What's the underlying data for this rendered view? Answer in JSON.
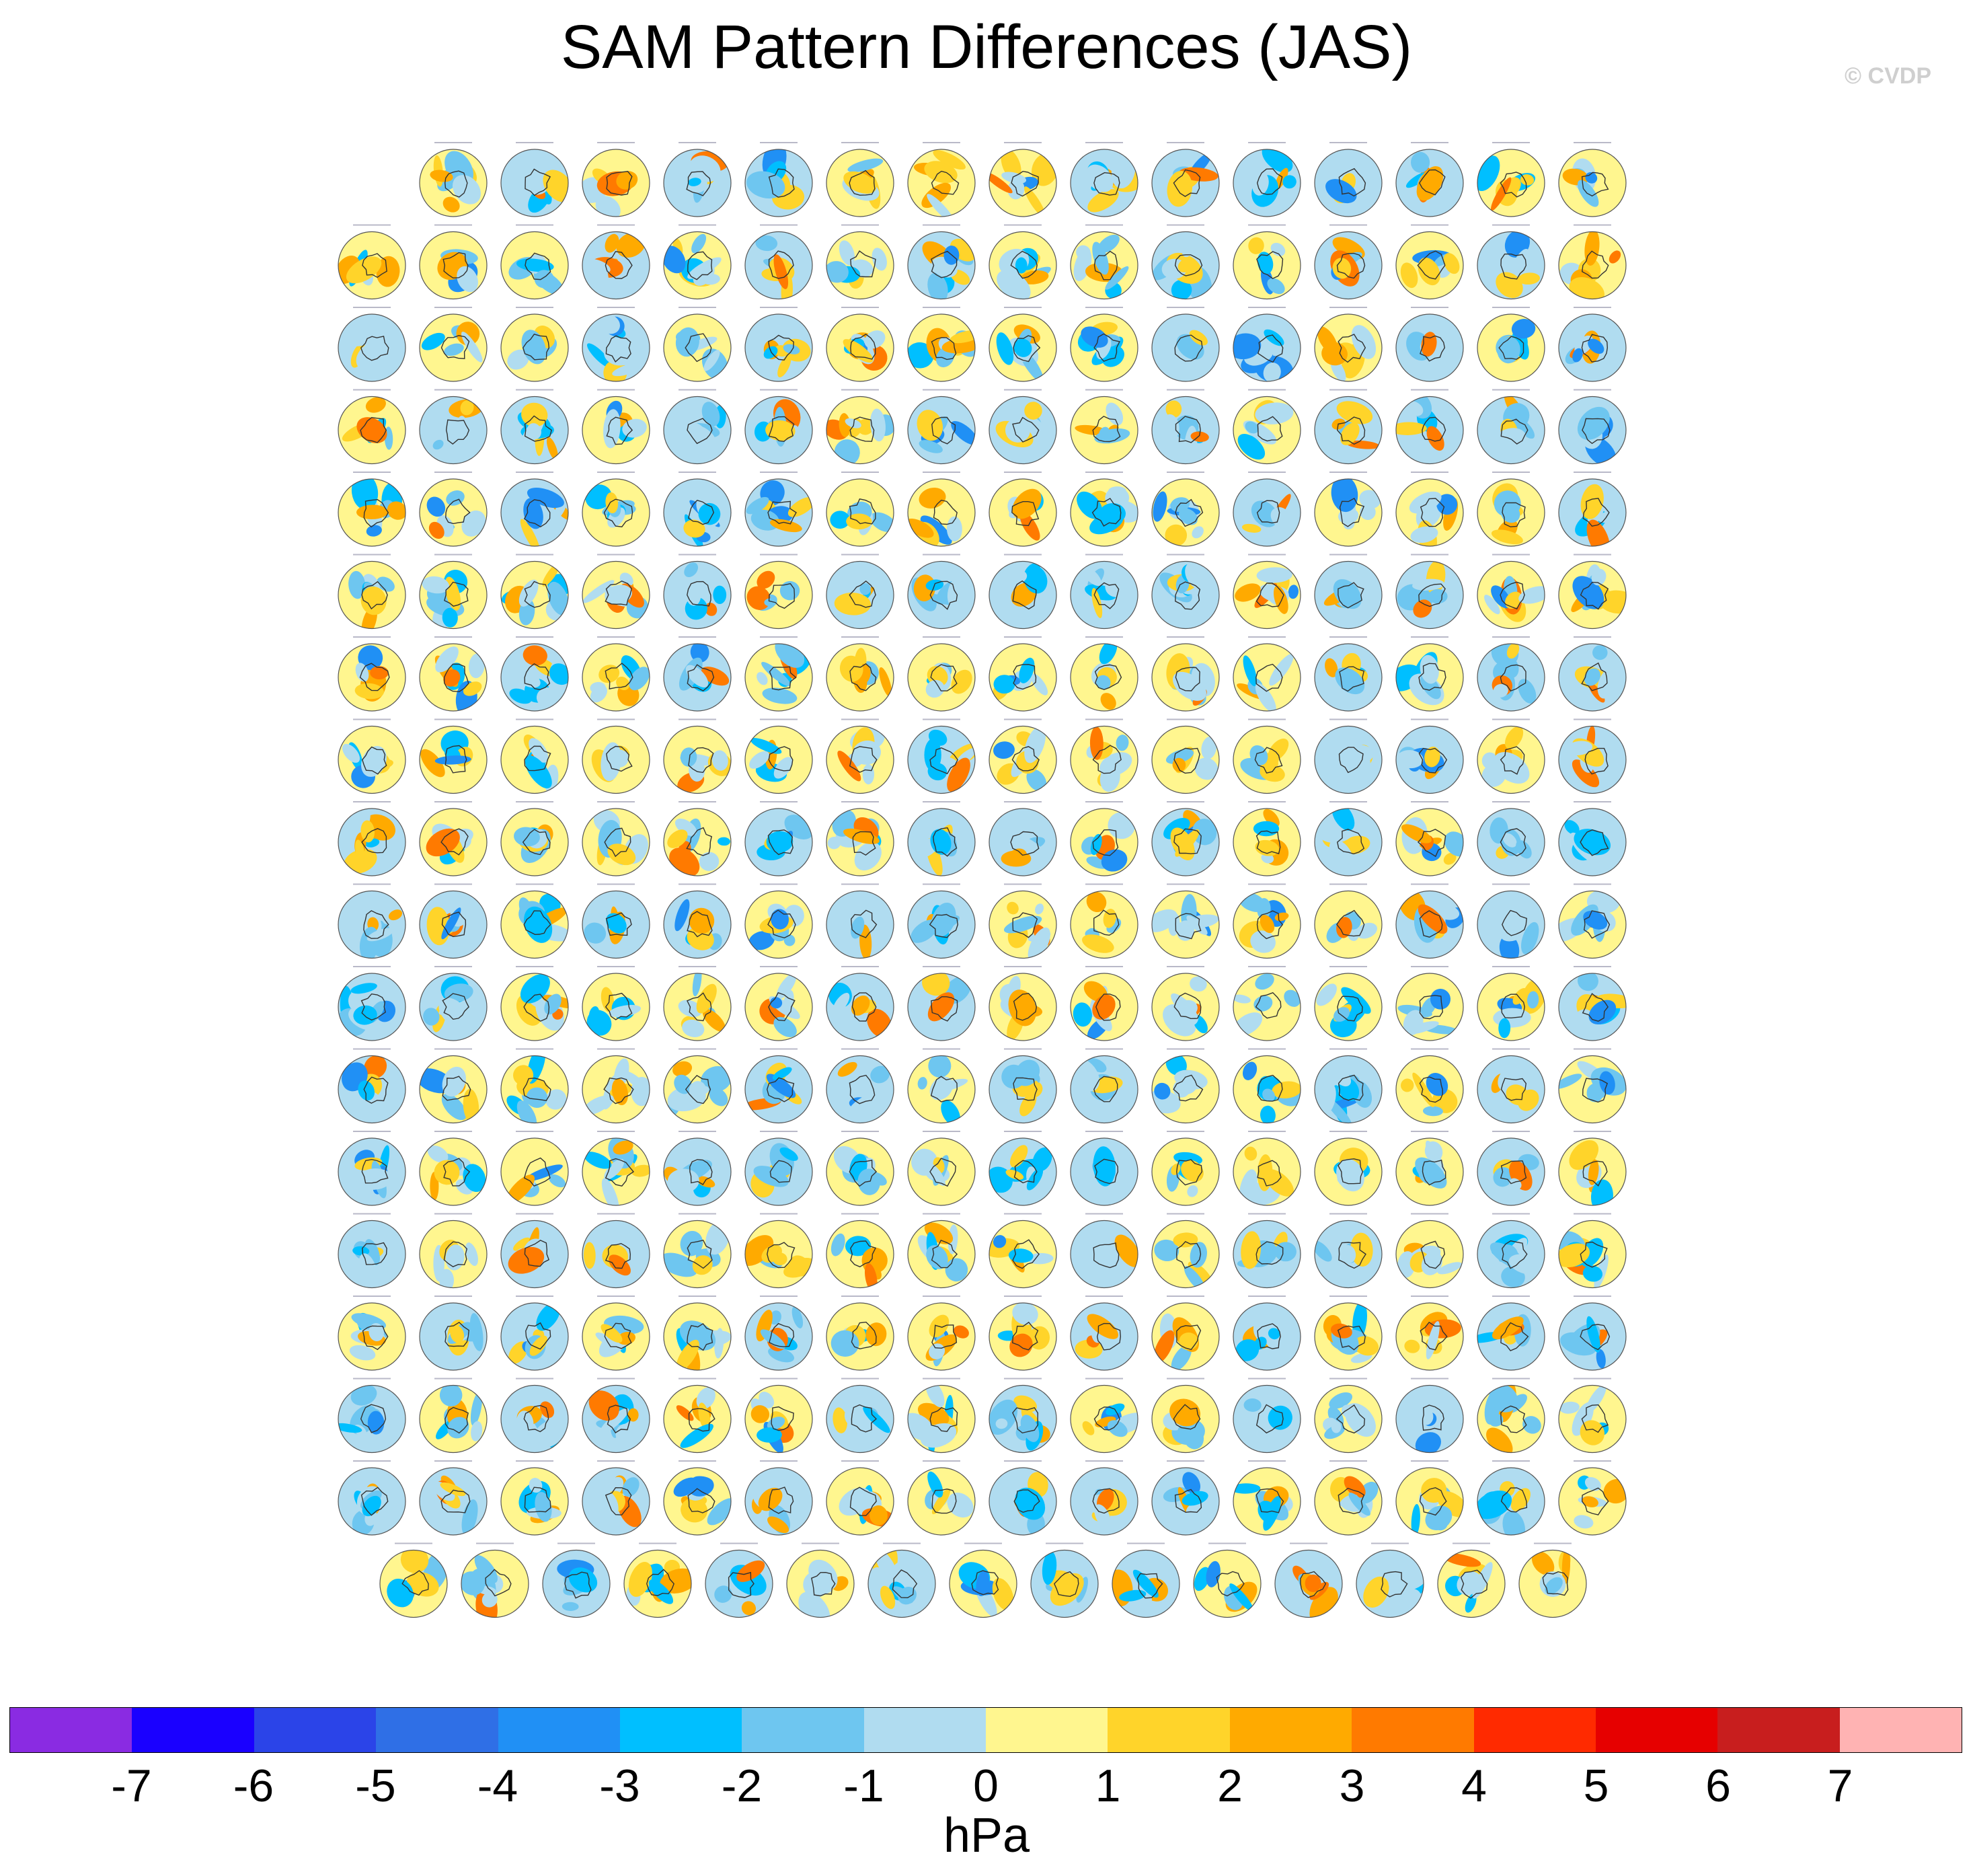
{
  "title": "SAM Pattern Differences (JAS)",
  "credit": "© CVDP",
  "chart_data": {
    "type": "heatmap",
    "title": "SAM Pattern Differences (JAS)",
    "description_of_grid": "Small-multiple polar maps (Southern Hemisphere) of SAM pattern differences",
    "panel_rows": [
      15,
      16,
      16,
      16,
      16,
      16,
      16,
      16,
      16,
      16,
      16,
      16,
      16,
      16,
      16,
      16,
      16,
      15
    ],
    "colorbar": {
      "units": "hPa",
      "tick_labels": [
        "-7",
        "-6",
        "-5",
        "-4",
        "-3",
        "-2",
        "-1",
        "0",
        "1",
        "2",
        "3",
        "4",
        "5",
        "6",
        "7"
      ],
      "levels": [
        -7,
        -6,
        -5,
        -4,
        -3,
        -2,
        -1,
        0,
        1,
        2,
        3,
        4,
        5,
        6,
        7
      ],
      "colors": [
        "#8a2be2",
        "#1a00ff",
        "#2b44e8",
        "#2f6fe6",
        "#2090f5",
        "#00bfff",
        "#6ec6f0",
        "#b0dcf0",
        "#fff68f",
        "#ffd42a",
        "#ffaa00",
        "#ff7a00",
        "#ff2a00",
        "#e60000",
        "#c81e1e",
        "#ffb3b3"
      ]
    }
  }
}
